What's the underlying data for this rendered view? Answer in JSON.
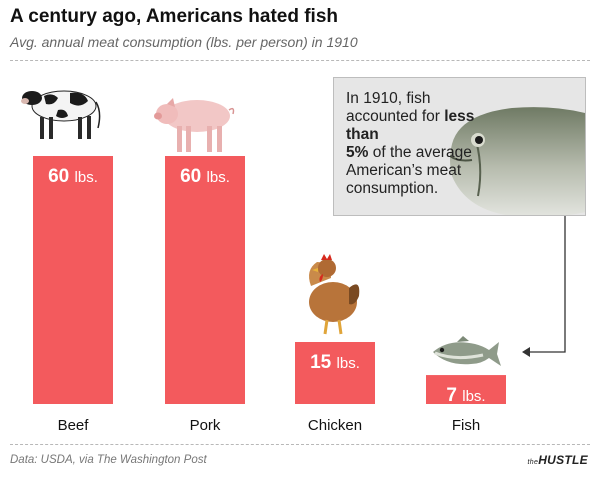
{
  "title": "A century ago, Americans hated fish",
  "subtitle": "Avg. annual meat consumption (lbs. per person) in 1910",
  "callout": {
    "pre": "In 1910, fish accounted for ",
    "bold1": "less than",
    "bold2": "5%",
    "post": " of the average American’s meat consumption."
  },
  "source": "Data: USDA, via The Washington Post",
  "brand": {
    "prefix": "the",
    "name": "HUSTLE"
  },
  "chart_data": {
    "type": "bar",
    "categories": [
      "Beef",
      "Pork",
      "Chicken",
      "Fish"
    ],
    "values": [
      60,
      60,
      15,
      7
    ],
    "value_labels": [
      "60 lbs.",
      "60 lbs.",
      "15 lbs.",
      "7 lbs."
    ],
    "ylim": [
      0,
      60
    ],
    "grid": false,
    "bar_color": "#f35a5d"
  },
  "icons": [
    "cow-icon",
    "pig-icon",
    "chicken-icon",
    "fish-icon",
    "fish-large-icon"
  ]
}
